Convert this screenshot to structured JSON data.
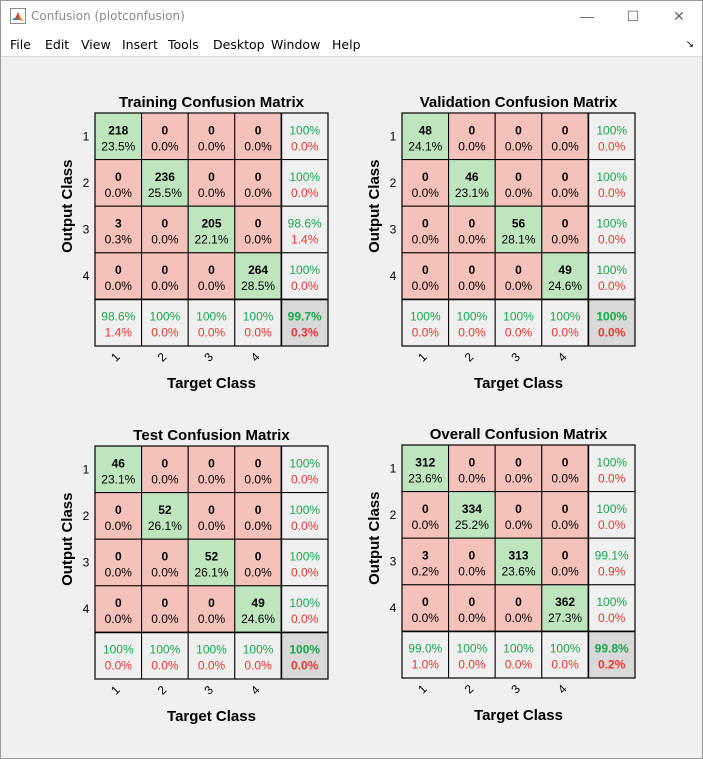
{
  "window": {
    "title": "Confusion (plotconfusion)",
    "minimize": "—",
    "maximize": "☐",
    "close": "✕"
  },
  "menu": [
    "File",
    "Edit",
    "View",
    "Insert",
    "Tools",
    "Desktop",
    "Window",
    "Help"
  ],
  "dock_glyph": "↘",
  "colors": {
    "correct_bg": "#bfe5bf",
    "wrong_bg": "#f4c1bb",
    "summary_bg": "#f0f0f0",
    "total_bg": "#d9d9d9",
    "green_text": "#1aa64a",
    "red_text": "#e8382e",
    "grid": "#000000"
  },
  "axes": {
    "ylabel": "Output Class",
    "xlabel": "Target Class",
    "row_ticks": [
      "1",
      "2",
      "3",
      "4"
    ],
    "col_ticks": [
      "1",
      "2",
      "3",
      "4"
    ]
  },
  "matrices": [
    {
      "title": "Training Confusion Matrix",
      "cells": [
        [
          [
            "218",
            "23.5%"
          ],
          [
            "0",
            "0.0%"
          ],
          [
            "0",
            "0.0%"
          ],
          [
            "0",
            "0.0%"
          ]
        ],
        [
          [
            "0",
            "0.0%"
          ],
          [
            "236",
            "25.5%"
          ],
          [
            "0",
            "0.0%"
          ],
          [
            "0",
            "0.0%"
          ]
        ],
        [
          [
            "3",
            "0.3%"
          ],
          [
            "0",
            "0.0%"
          ],
          [
            "205",
            "22.1%"
          ],
          [
            "0",
            "0.0%"
          ]
        ],
        [
          [
            "0",
            "0.0%"
          ],
          [
            "0",
            "0.0%"
          ],
          [
            "0",
            "0.0%"
          ],
          [
            "264",
            "28.5%"
          ]
        ]
      ],
      "row_summary": [
        [
          "100%",
          "0.0%"
        ],
        [
          "100%",
          "0.0%"
        ],
        [
          "98.6%",
          "1.4%"
        ],
        [
          "100%",
          "0.0%"
        ]
      ],
      "col_summary": [
        [
          "98.6%",
          "1.4%"
        ],
        [
          "100%",
          "0.0%"
        ],
        [
          "100%",
          "0.0%"
        ],
        [
          "100%",
          "0.0%"
        ]
      ],
      "total": [
        "99.7%",
        "0.3%"
      ]
    },
    {
      "title": "Validation Confusion Matrix",
      "cells": [
        [
          [
            "48",
            "24.1%"
          ],
          [
            "0",
            "0.0%"
          ],
          [
            "0",
            "0.0%"
          ],
          [
            "0",
            "0.0%"
          ]
        ],
        [
          [
            "0",
            "0.0%"
          ],
          [
            "46",
            "23.1%"
          ],
          [
            "0",
            "0.0%"
          ],
          [
            "0",
            "0.0%"
          ]
        ],
        [
          [
            "0",
            "0.0%"
          ],
          [
            "0",
            "0.0%"
          ],
          [
            "56",
            "28.1%"
          ],
          [
            "0",
            "0.0%"
          ]
        ],
        [
          [
            "0",
            "0.0%"
          ],
          [
            "0",
            "0.0%"
          ],
          [
            "0",
            "0.0%"
          ],
          [
            "49",
            "24.6%"
          ]
        ]
      ],
      "row_summary": [
        [
          "100%",
          "0.0%"
        ],
        [
          "100%",
          "0.0%"
        ],
        [
          "100%",
          "0.0%"
        ],
        [
          "100%",
          "0.0%"
        ]
      ],
      "col_summary": [
        [
          "100%",
          "0.0%"
        ],
        [
          "100%",
          "0.0%"
        ],
        [
          "100%",
          "0.0%"
        ],
        [
          "100%",
          "0.0%"
        ]
      ],
      "total": [
        "100%",
        "0.0%"
      ]
    },
    {
      "title": "Test Confusion Matrix",
      "cells": [
        [
          [
            "46",
            "23.1%"
          ],
          [
            "0",
            "0.0%"
          ],
          [
            "0",
            "0.0%"
          ],
          [
            "0",
            "0.0%"
          ]
        ],
        [
          [
            "0",
            "0.0%"
          ],
          [
            "52",
            "26.1%"
          ],
          [
            "0",
            "0.0%"
          ],
          [
            "0",
            "0.0%"
          ]
        ],
        [
          [
            "0",
            "0.0%"
          ],
          [
            "0",
            "0.0%"
          ],
          [
            "52",
            "26.1%"
          ],
          [
            "0",
            "0.0%"
          ]
        ],
        [
          [
            "0",
            "0.0%"
          ],
          [
            "0",
            "0.0%"
          ],
          [
            "0",
            "0.0%"
          ],
          [
            "49",
            "24.6%"
          ]
        ]
      ],
      "row_summary": [
        [
          "100%",
          "0.0%"
        ],
        [
          "100%",
          "0.0%"
        ],
        [
          "100%",
          "0.0%"
        ],
        [
          "100%",
          "0.0%"
        ]
      ],
      "col_summary": [
        [
          "100%",
          "0.0%"
        ],
        [
          "100%",
          "0.0%"
        ],
        [
          "100%",
          "0.0%"
        ],
        [
          "100%",
          "0.0%"
        ]
      ],
      "total": [
        "100%",
        "0.0%"
      ]
    },
    {
      "title": "Overall Confusion Matrix",
      "cells": [
        [
          [
            "312",
            "23.6%"
          ],
          [
            "0",
            "0.0%"
          ],
          [
            "0",
            "0.0%"
          ],
          [
            "0",
            "0.0%"
          ]
        ],
        [
          [
            "0",
            "0.0%"
          ],
          [
            "334",
            "25.2%"
          ],
          [
            "0",
            "0.0%"
          ],
          [
            "0",
            "0.0%"
          ]
        ],
        [
          [
            "3",
            "0.2%"
          ],
          [
            "0",
            "0.0%"
          ],
          [
            "313",
            "23.6%"
          ],
          [
            "0",
            "0.0%"
          ]
        ],
        [
          [
            "0",
            "0.0%"
          ],
          [
            "0",
            "0.0%"
          ],
          [
            "0",
            "0.0%"
          ],
          [
            "362",
            "27.3%"
          ]
        ]
      ],
      "row_summary": [
        [
          "100%",
          "0.0%"
        ],
        [
          "100%",
          "0.0%"
        ],
        [
          "99.1%",
          "0.9%"
        ],
        [
          "100%",
          "0.0%"
        ]
      ],
      "col_summary": [
        [
          "99.0%",
          "1.0%"
        ],
        [
          "100%",
          "0.0%"
        ],
        [
          "100%",
          "0.0%"
        ],
        [
          "100%",
          "0.0%"
        ]
      ],
      "total": [
        "99.8%",
        "0.2%"
      ]
    }
  ]
}
